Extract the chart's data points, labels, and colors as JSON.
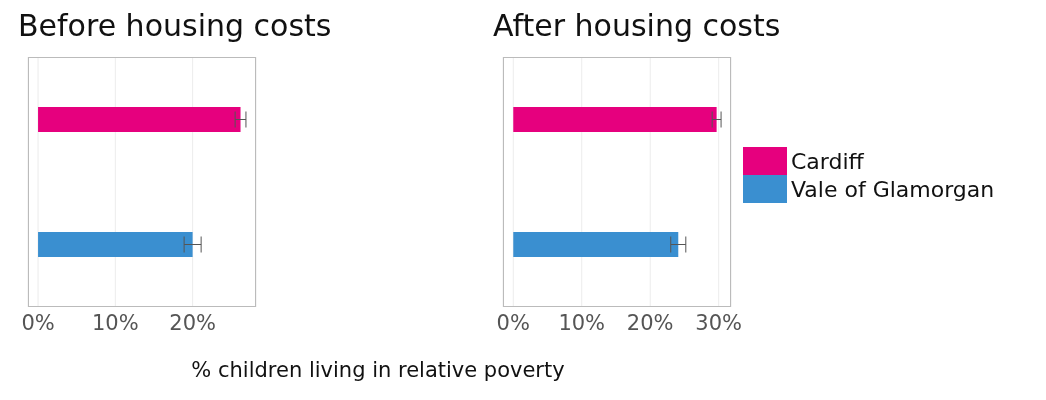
{
  "chart_data": [
    {
      "type": "bar",
      "orientation": "horizontal",
      "stacked": true,
      "title": "Before housing costs",
      "xlabel": "% children living in relative poverty",
      "categories": [
        null,
        null
      ],
      "series": [
        {
          "color": "#e6007e",
          "values": [
            26.2,
            null
          ],
          "errors": [
            0.7,
            null
          ]
        },
        {
          "color": "#3a8fd0",
          "values": [
            null,
            20.0
          ],
          "errors": [
            null,
            1.1
          ]
        }
      ],
      "xlim": [
        -1.3,
        28.2
      ],
      "xticks": [
        {
          "value": 0,
          "label": "0%"
        },
        {
          "value": 10,
          "label": "10%"
        },
        {
          "value": 20,
          "label": "20%"
        }
      ],
      "grid": "x"
    },
    {
      "type": "bar",
      "orientation": "horizontal",
      "stacked": true,
      "title": "After housing costs",
      "categories": [
        null,
        null
      ],
      "series": [
        {
          "name": "Cardiff",
          "color": "#e6007e",
          "values": [
            29.7,
            null
          ],
          "errors": [
            0.65,
            null
          ]
        },
        {
          "name": "Vale of Glamorgan",
          "color": "#3a8fd0",
          "values": [
            null,
            24.1
          ],
          "errors": [
            null,
            1.1
          ]
        }
      ],
      "xlim": [
        -1.5,
        31.8
      ],
      "xticks": [
        {
          "value": 0,
          "label": "0%"
        },
        {
          "value": 10,
          "label": "10%"
        },
        {
          "value": 20,
          "label": "20%"
        },
        {
          "value": 30,
          "label": "30%"
        }
      ],
      "grid": "x",
      "legend": "right"
    }
  ]
}
